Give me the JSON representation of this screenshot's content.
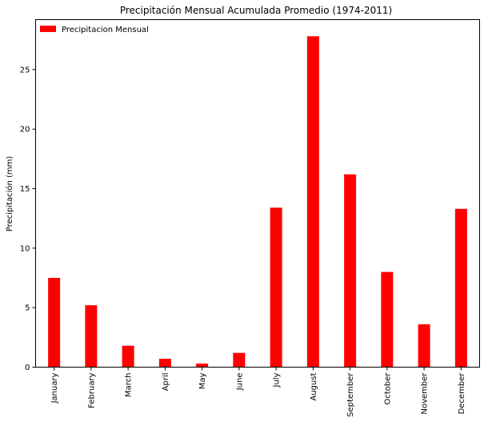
{
  "chart_data": {
    "type": "bar",
    "title": "Precipitación Mensual Acumulada Promedio (1974-2011)",
    "xlabel": "",
    "ylabel": "Precipitación (mm)",
    "categories": [
      "January",
      "February",
      "March",
      "April",
      "May",
      "June",
      "July",
      "August",
      "September",
      "October",
      "November",
      "December"
    ],
    "series": [
      {
        "name": "Precipitacion Mensual",
        "color": "#ff0000",
        "values": [
          7.5,
          5.2,
          1.8,
          0.7,
          0.3,
          1.2,
          13.4,
          27.8,
          16.2,
          8.0,
          3.6,
          13.3
        ]
      }
    ],
    "ylim": [
      0,
      29.2
    ],
    "yticks": [
      0,
      5,
      10,
      15,
      20,
      25
    ],
    "grid": false,
    "legend_position": "top-left"
  }
}
